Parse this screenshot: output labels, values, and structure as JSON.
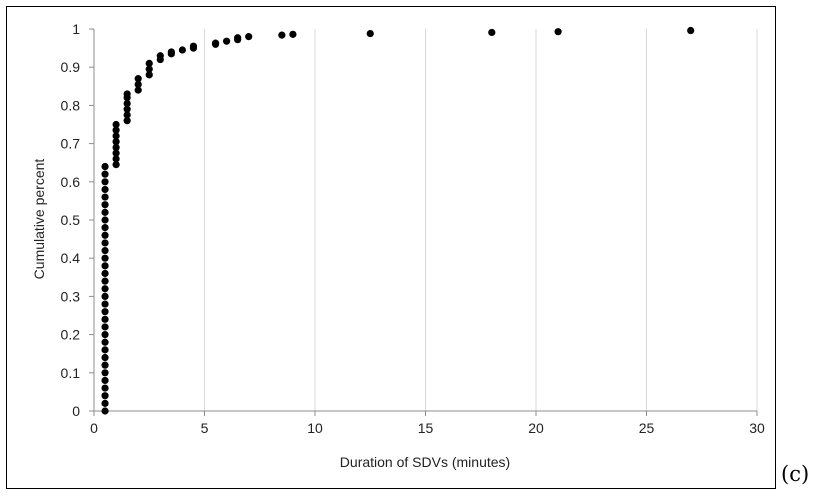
{
  "chart_data": {
    "type": "scatter",
    "title": "",
    "xlabel": "Duration of SDVs (minutes)",
    "ylabel": "Cumulative percent",
    "xlim": [
      0,
      30
    ],
    "ylim": [
      0,
      1
    ],
    "xticks": [
      0,
      5,
      10,
      15,
      20,
      25,
      30
    ],
    "yticks": [
      0,
      0.1,
      0.2,
      0.3,
      0.4,
      0.5,
      0.6,
      0.7,
      0.8,
      0.9,
      1
    ],
    "xtick_labels": [
      "0",
      "5",
      "10",
      "15",
      "20",
      "25",
      "30"
    ],
    "ytick_labels": [
      "0",
      "0.1",
      "0.2",
      "0.3",
      "0.4",
      "0.5",
      "0.6",
      "0.7",
      "0.8",
      "0.9",
      "1"
    ],
    "grid": "vertical",
    "legend": "none",
    "marker_color": "#000000",
    "series": [
      {
        "points": [
          {
            "x": 0.5,
            "y": 0.0
          },
          {
            "x": 0.5,
            "y": 0.02
          },
          {
            "x": 0.5,
            "y": 0.04
          },
          {
            "x": 0.5,
            "y": 0.06
          },
          {
            "x": 0.5,
            "y": 0.08
          },
          {
            "x": 0.5,
            "y": 0.1
          },
          {
            "x": 0.5,
            "y": 0.12
          },
          {
            "x": 0.5,
            "y": 0.14
          },
          {
            "x": 0.5,
            "y": 0.16
          },
          {
            "x": 0.5,
            "y": 0.18
          },
          {
            "x": 0.5,
            "y": 0.2
          },
          {
            "x": 0.5,
            "y": 0.22
          },
          {
            "x": 0.5,
            "y": 0.24
          },
          {
            "x": 0.5,
            "y": 0.26
          },
          {
            "x": 0.5,
            "y": 0.28
          },
          {
            "x": 0.5,
            "y": 0.3
          },
          {
            "x": 0.5,
            "y": 0.32
          },
          {
            "x": 0.5,
            "y": 0.34
          },
          {
            "x": 0.5,
            "y": 0.36
          },
          {
            "x": 0.5,
            "y": 0.38
          },
          {
            "x": 0.5,
            "y": 0.4
          },
          {
            "x": 0.5,
            "y": 0.42
          },
          {
            "x": 0.5,
            "y": 0.44
          },
          {
            "x": 0.5,
            "y": 0.46
          },
          {
            "x": 0.5,
            "y": 0.48
          },
          {
            "x": 0.5,
            "y": 0.5
          },
          {
            "x": 0.5,
            "y": 0.52
          },
          {
            "x": 0.5,
            "y": 0.54
          },
          {
            "x": 0.5,
            "y": 0.56
          },
          {
            "x": 0.5,
            "y": 0.58
          },
          {
            "x": 0.5,
            "y": 0.6
          },
          {
            "x": 0.5,
            "y": 0.62
          },
          {
            "x": 0.5,
            "y": 0.64
          },
          {
            "x": 1.0,
            "y": 0.645
          },
          {
            "x": 1.0,
            "y": 0.66
          },
          {
            "x": 1.0,
            "y": 0.675
          },
          {
            "x": 1.0,
            "y": 0.69
          },
          {
            "x": 1.0,
            "y": 0.705
          },
          {
            "x": 1.0,
            "y": 0.72
          },
          {
            "x": 1.0,
            "y": 0.735
          },
          {
            "x": 1.0,
            "y": 0.75
          },
          {
            "x": 1.5,
            "y": 0.76
          },
          {
            "x": 1.5,
            "y": 0.775
          },
          {
            "x": 1.5,
            "y": 0.79
          },
          {
            "x": 1.5,
            "y": 0.805
          },
          {
            "x": 1.5,
            "y": 0.82
          },
          {
            "x": 1.5,
            "y": 0.83
          },
          {
            "x": 2.0,
            "y": 0.84
          },
          {
            "x": 2.0,
            "y": 0.855
          },
          {
            "x": 2.0,
            "y": 0.87
          },
          {
            "x": 2.5,
            "y": 0.88
          },
          {
            "x": 2.5,
            "y": 0.895
          },
          {
            "x": 2.5,
            "y": 0.91
          },
          {
            "x": 3.0,
            "y": 0.92
          },
          {
            "x": 3.0,
            "y": 0.93
          },
          {
            "x": 3.5,
            "y": 0.935
          },
          {
            "x": 3.5,
            "y": 0.94
          },
          {
            "x": 4.0,
            "y": 0.945
          },
          {
            "x": 4.5,
            "y": 0.95
          },
          {
            "x": 4.5,
            "y": 0.955
          },
          {
            "x": 5.5,
            "y": 0.96
          },
          {
            "x": 5.5,
            "y": 0.963
          },
          {
            "x": 6.0,
            "y": 0.968
          },
          {
            "x": 6.5,
            "y": 0.972
          },
          {
            "x": 6.5,
            "y": 0.977
          },
          {
            "x": 7.0,
            "y": 0.98
          },
          {
            "x": 8.5,
            "y": 0.984
          },
          {
            "x": 9.0,
            "y": 0.986
          },
          {
            "x": 12.5,
            "y": 0.988
          },
          {
            "x": 18.0,
            "y": 0.991
          },
          {
            "x": 21.0,
            "y": 0.993
          },
          {
            "x": 27.0,
            "y": 0.996
          }
        ]
      }
    ]
  },
  "panel_label": "(c)"
}
